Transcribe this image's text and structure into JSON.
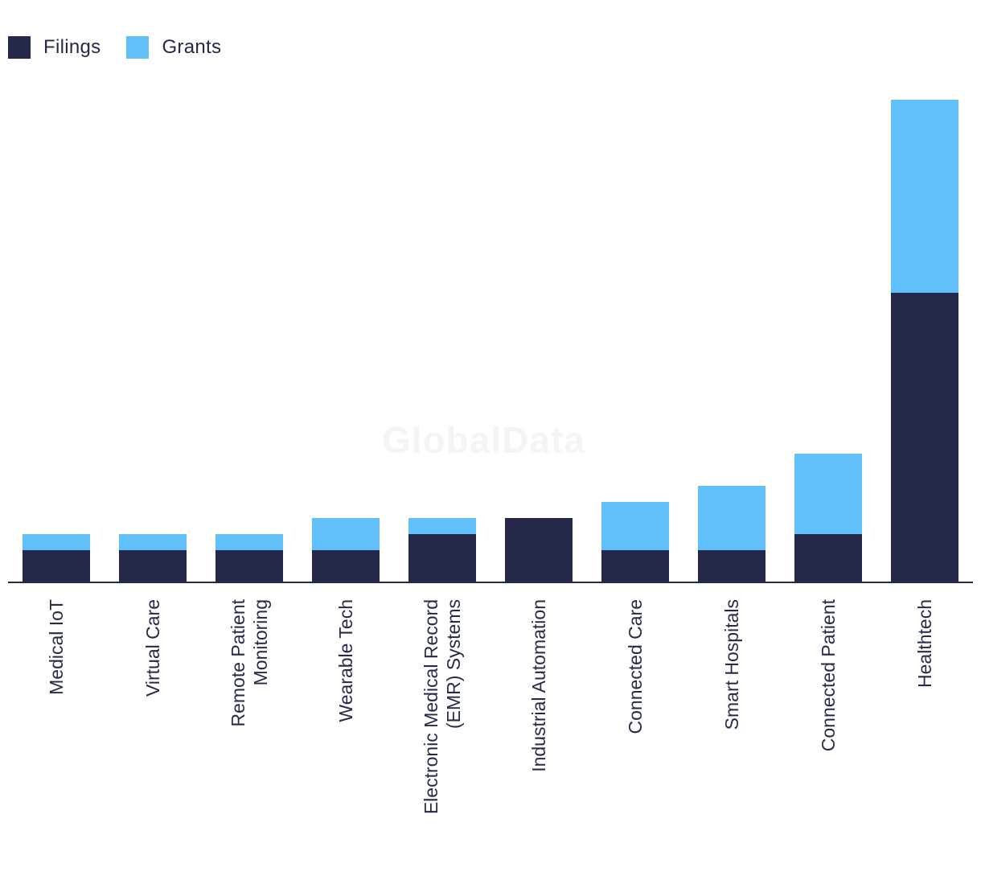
{
  "legend": {
    "filings_label": "Filings",
    "grants_label": "Grants"
  },
  "watermark": "GlobalData",
  "colors": {
    "filings": "#262849",
    "grants": "#62c0f8",
    "axis": "#262a4a"
  },
  "chart_data": {
    "type": "bar",
    "stacked": true,
    "categories": [
      [
        "Medical IoT"
      ],
      [
        "Virtual Care"
      ],
      [
        "Remote Patient",
        "Monitoring"
      ],
      [
        "Wearable Tech"
      ],
      [
        "Electronic Medical Record",
        "(EMR) Systems"
      ],
      [
        "Industrial Automation"
      ],
      [
        "Connected Care"
      ],
      [
        "Smart Hospitals"
      ],
      [
        "Connected Patient"
      ],
      [
        "Healthtech"
      ]
    ],
    "series": [
      {
        "name": "Filings",
        "values": [
          2,
          2,
          2,
          2,
          3,
          4,
          2,
          2,
          3,
          18
        ]
      },
      {
        "name": "Grants",
        "values": [
          1,
          1,
          1,
          2,
          1,
          0,
          3,
          4,
          5,
          12
        ]
      }
    ],
    "ylim": [
      0,
      30
    ],
    "grid": false,
    "legend_position": "top-left",
    "xlabel": "",
    "ylabel": ""
  }
}
